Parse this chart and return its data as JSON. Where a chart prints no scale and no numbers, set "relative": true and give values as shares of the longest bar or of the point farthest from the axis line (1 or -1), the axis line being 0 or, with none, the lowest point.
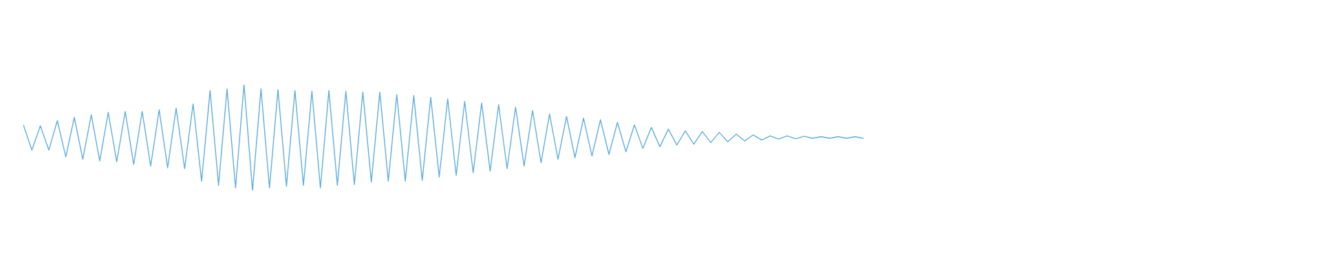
{
  "chart_data": {
    "type": "line",
    "relative": true,
    "color": "#5dade2",
    "grid": false,
    "legend": false,
    "marker": "none",
    "line_style": "solid",
    "categories": [
      null,
      null,
      null,
      null,
      null,
      null,
      null,
      null,
      null,
      null,
      null,
      null,
      null,
      null,
      null,
      null,
      null,
      null,
      null,
      null,
      null,
      null,
      null,
      null,
      null,
      null,
      null,
      null,
      null,
      null,
      null,
      null,
      null,
      null,
      null,
      null,
      null,
      null,
      null,
      null,
      null,
      null,
      null,
      null,
      null,
      null,
      null,
      null,
      null,
      null,
      null,
      null,
      null,
      null,
      null,
      null,
      null,
      null,
      null,
      null,
      null,
      null,
      null,
      null,
      null,
      null,
      null,
      null,
      null,
      null,
      null,
      null,
      null,
      null,
      null,
      null,
      null,
      null,
      null,
      null,
      null,
      null,
      null,
      null,
      null,
      null,
      null,
      null,
      null,
      null,
      null,
      null,
      null,
      null,
      null,
      null,
      null,
      null,
      null,
      null
    ],
    "values": [
      0.619,
      0.381,
      0.611,
      0.381,
      0.659,
      0.317,
      0.69,
      0.294,
      0.714,
      0.278,
      0.738,
      0.27,
      0.746,
      0.246,
      0.746,
      0.23,
      0.762,
      0.214,
      0.778,
      0.206,
      0.817,
      0.087,
      0.944,
      0.048,
      0.96,
      0.024,
      1.0,
      0.0,
      0.96,
      0.024,
      0.952,
      0.04,
      0.944,
      0.048,
      0.937,
      0.024,
      0.944,
      0.048,
      0.937,
      0.056,
      0.929,
      0.079,
      0.929,
      0.087,
      0.905,
      0.087,
      0.897,
      0.095,
      0.881,
      0.127,
      0.865,
      0.143,
      0.841,
      0.167,
      0.825,
      0.183,
      0.81,
      0.206,
      0.786,
      0.23,
      0.754,
      0.262,
      0.722,
      0.294,
      0.698,
      0.31,
      0.683,
      0.325,
      0.667,
      0.341,
      0.643,
      0.365,
      0.619,
      0.397,
      0.595,
      0.413,
      0.579,
      0.429,
      0.563,
      0.437,
      0.556,
      0.452,
      0.548,
      0.46,
      0.532,
      0.468,
      0.524,
      0.476,
      0.516,
      0.484,
      0.516,
      0.488,
      0.512,
      0.492,
      0.508,
      0.492,
      0.508,
      0.492,
      0.508,
      0.492
    ]
  }
}
